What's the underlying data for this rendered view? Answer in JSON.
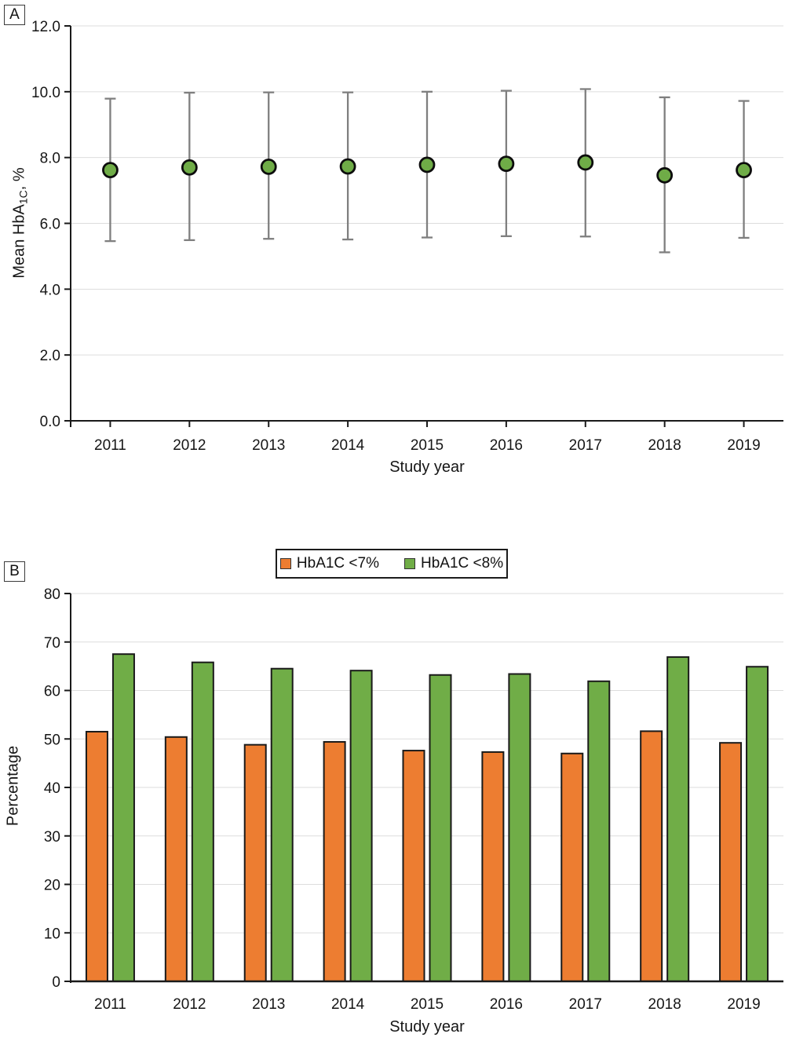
{
  "figure": {
    "panel_a_label": "A",
    "panel_b_label": "B"
  },
  "colors": {
    "orange": "#ED7D31",
    "green": "#70AD47",
    "marker_green": "#6FAC47",
    "errorbar_gray": "#7F7F7F",
    "gridline": "#DDDDDD",
    "axis": "#1a1a1a",
    "bar_outline": "#1a1a1a",
    "marker_outline": "#0d0d0d"
  },
  "chart_data": [
    {
      "type": "scatter",
      "panel": "A",
      "title": "",
      "xlabel": "Study year",
      "ylabel": "Mean HbA1C, %",
      "ylabel_parts": {
        "main": "Mean HbA",
        "sub": "1C",
        "suffix": ", %"
      },
      "categories": [
        "2011",
        "2012",
        "2013",
        "2014",
        "2015",
        "2016",
        "2017",
        "2018",
        "2019"
      ],
      "series": [
        {
          "name": "Mean HbA1C",
          "values": [
            7.62,
            7.7,
            7.72,
            7.73,
            7.78,
            7.81,
            7.85,
            7.46,
            7.62
          ],
          "upper": [
            9.79,
            9.97,
            9.98,
            9.98,
            10.0,
            10.03,
            10.08,
            9.83,
            9.72
          ],
          "lower": [
            5.46,
            5.49,
            5.53,
            5.51,
            5.57,
            5.61,
            5.6,
            5.12,
            5.56
          ]
        }
      ],
      "ylim": [
        0,
        12
      ],
      "ytick_values": [
        0,
        2,
        4,
        6,
        8,
        10,
        12
      ],
      "ytick_labels": [
        "0.0",
        "2.0",
        "4.0",
        "6.0",
        "8.0",
        "10.0",
        "12.0"
      ],
      "grid": true,
      "legend_position": "none"
    },
    {
      "type": "bar",
      "panel": "B",
      "title": "",
      "xlabel": "Study year",
      "ylabel": "Percentage",
      "categories": [
        "2011",
        "2012",
        "2013",
        "2014",
        "2015",
        "2016",
        "2017",
        "2018",
        "2019"
      ],
      "series": [
        {
          "name": "HbA1C <7%",
          "color": "#ED7D31",
          "values": [
            51.5,
            50.4,
            48.8,
            49.4,
            47.6,
            47.3,
            47.0,
            51.6,
            49.2
          ]
        },
        {
          "name": "HbA1C <8%",
          "color": "#70AD47",
          "values": [
            67.5,
            65.8,
            64.5,
            64.1,
            63.2,
            63.4,
            61.9,
            66.9,
            64.9
          ]
        }
      ],
      "ylim": [
        0,
        80
      ],
      "ytick_values": [
        0,
        10,
        20,
        30,
        40,
        50,
        60,
        70,
        80
      ],
      "ytick_labels": [
        "0",
        "10",
        "20",
        "30",
        "40",
        "50",
        "60",
        "70",
        "80"
      ],
      "grid": true,
      "legend_position": "top-center"
    }
  ]
}
